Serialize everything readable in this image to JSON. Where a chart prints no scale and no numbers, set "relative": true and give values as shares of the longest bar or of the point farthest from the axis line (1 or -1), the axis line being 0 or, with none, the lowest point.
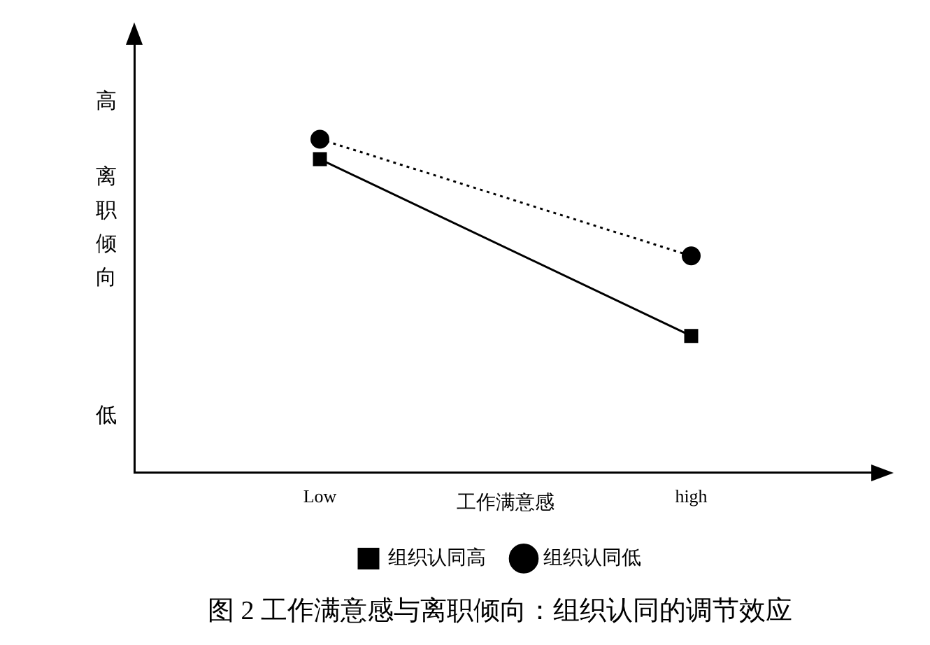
{
  "chart_data": {
    "type": "line",
    "title": "图 2 工作满意感与离职倾向：组织认同的调节效应",
    "xlabel": "工作满意感",
    "ylabel": "离职倾向",
    "annotations": [
      "高",
      "低"
    ],
    "relative": true,
    "categories": [
      "Low",
      "high"
    ],
    "legend": "bottom",
    "grid": false,
    "series": [
      {
        "name": "组织认同高",
        "color": "#000000",
        "values": [
          0.94,
          0.41
        ],
        "marker": "square",
        "line_style": "solid"
      },
      {
        "name": "组织认同低",
        "color": "#000000",
        "values": [
          1,
          0.65
        ],
        "marker": "circle",
        "line_style": "dotted"
      }
    ]
  }
}
